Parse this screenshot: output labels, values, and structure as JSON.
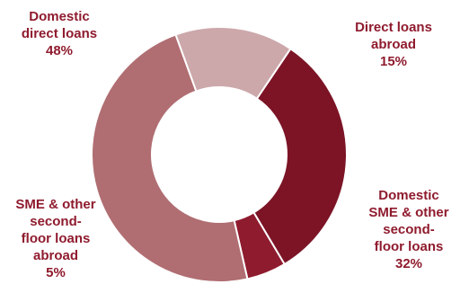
{
  "chart_data": {
    "type": "pie",
    "donut": true,
    "slices": [
      {
        "label_lines": [
          "Direct loans",
          "abroad"
        ],
        "value_label": "15%",
        "value": 15,
        "color": "#cca8ab"
      },
      {
        "label_lines": [
          "Domestic",
          "SME & other",
          "second-",
          "floor loans"
        ],
        "value_label": "32%",
        "value": 32,
        "color": "#7c1426"
      },
      {
        "label_lines": [
          "SME & other",
          "second-",
          "floor loans",
          "abroad"
        ],
        "value_label": "5%",
        "value": 5,
        "color": "#8f1b2e"
      },
      {
        "label_lines": [
          "Domestic",
          "direct loans"
        ],
        "value_label": "48%",
        "value": 48,
        "color": "#b06e72"
      }
    ],
    "legend": "none"
  }
}
